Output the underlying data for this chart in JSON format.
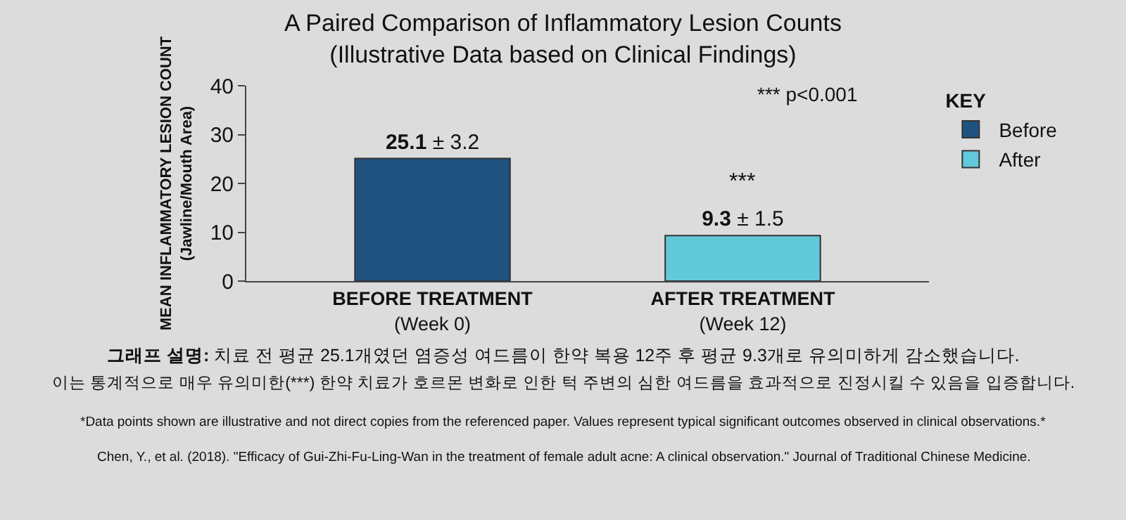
{
  "chart_data": {
    "type": "bar",
    "title": "A Paired Comparison of Inflammatory Lesion Counts\n(Illustrative Data based on Clinical Findings)",
    "ylabel": "MEAN INFLAMMATORY LESION COUNT\n(Jawline/Mouth Area)",
    "legend_title": "KEY",
    "categories": [
      "BEFORE TREATMENT\n(Week 0)",
      "AFTER TREATMENT\n(Week 12)"
    ],
    "series": [
      {
        "name": "Before",
        "color": "#1f5280",
        "values": [
          25.1,
          null
        ],
        "value_labels": [
          "25.1 ± 3.2",
          null
        ]
      },
      {
        "name": "After",
        "color": "#62c9da",
        "values": [
          null,
          9.3
        ],
        "value_labels": [
          null,
          "9.3 ± 1.5"
        ]
      }
    ],
    "ylim": [
      0,
      40
    ],
    "yticks": [
      0,
      10,
      20,
      30,
      40
    ],
    "grid": false,
    "legend": "top right",
    "annotations": [
      {
        "text": "***",
        "x": "AFTER TREATMENT\n(Week 12)",
        "y": 9.3
      },
      "*** p<0.001",
      "그래프 설명: 치료 전 평균 25.1개였던 염증성 여드름이 한약 복용 12주 후 평균 9.3개로 유의미하게 감소했습니다.",
      "이는 통계적으로 매우 유의미한(***) 한약 치료가 호르몬 변화로 인한 턱 주변의 심한 여드름을 효과적으로 진정시킬 수 있음을 입증합니다.",
      "*Data points shown are illustrative and not direct copies from the referenced paper. Values represent typical significant outcomes observed in clinical observations.*",
      "Chen, Y., et al. (2018). \"Efficacy of Gui-Zhi-Fu-Ling-Wan in the treatment of female adult acne: A clinical observation.\" Journal of Traditional Chinese Medicine."
    ]
  }
}
